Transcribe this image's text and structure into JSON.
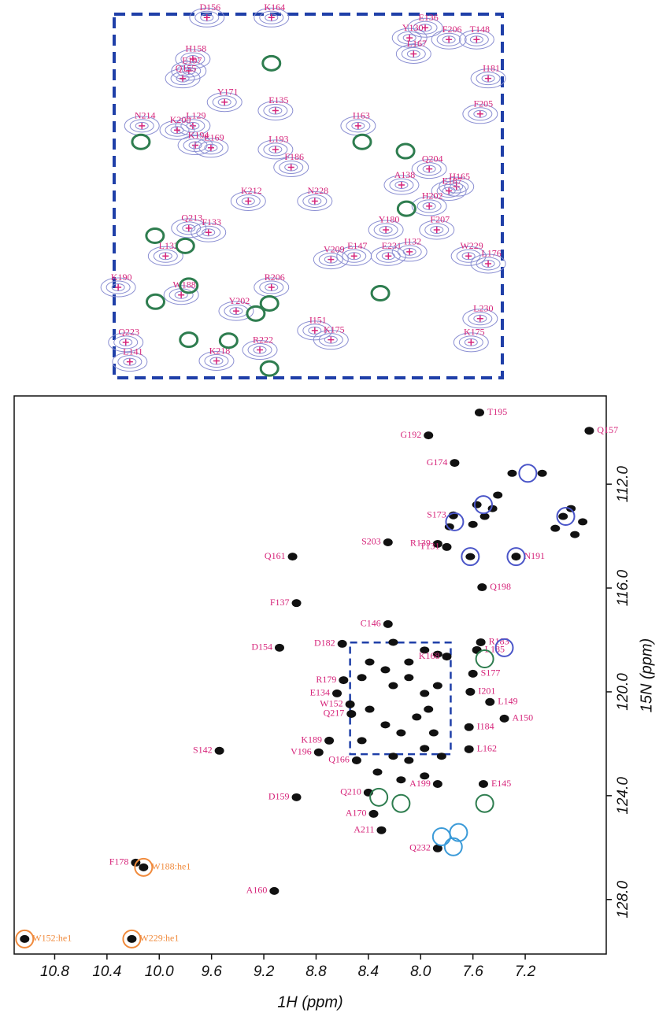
{
  "chart_data": [
    {
      "type": "scatter",
      "xlim": [
        8.54,
        7.77
      ],
      "ylim": [
        118.1,
        122.4
      ],
      "border_color": "#1f3fa8",
      "contour_color": "#8a8ed2",
      "label_color": "#d6247a",
      "point_color": "#d6247a",
      "points": [
        {
          "label": "D156",
          "x": 8.356,
          "y": 118.14
        },
        {
          "label": "K164",
          "x": 8.228,
          "y": 118.14
        },
        {
          "label": "E136",
          "x": 7.923,
          "y": 118.26
        },
        {
          "label": "Y130",
          "x": 7.954,
          "y": 118.38
        },
        {
          "label": "L167",
          "x": 7.946,
          "y": 118.57
        },
        {
          "label": "F206",
          "x": 7.876,
          "y": 118.4
        },
        {
          "label": "T148",
          "x": 7.821,
          "y": 118.4
        },
        {
          "label": "H158",
          "x": 8.384,
          "y": 118.63
        },
        {
          "label": "E197",
          "x": 8.392,
          "y": 118.77
        },
        {
          "label": "Q155",
          "x": 8.404,
          "y": 118.86
        },
        {
          "label": "I181",
          "x": 7.798,
          "y": 118.86
        },
        {
          "label": "Y171",
          "x": 8.321,
          "y": 119.14
        },
        {
          "label": "E135",
          "x": 8.22,
          "y": 119.24
        },
        {
          "label": "F205",
          "x": 7.814,
          "y": 119.28
        },
        {
          "label": "N214",
          "x": 8.485,
          "y": 119.42
        },
        {
          "label": "I163",
          "x": 8.056,
          "y": 119.42
        },
        {
          "label": "L129",
          "x": 8.384,
          "y": 119.42
        },
        {
          "label": "K200",
          "x": 8.415,
          "y": 119.47
        },
        {
          "label": "K194",
          "x": 8.379,
          "y": 119.65
        },
        {
          "label": "E169",
          "x": 8.348,
          "y": 119.68
        },
        {
          "label": "L193",
          "x": 8.22,
          "y": 119.7
        },
        {
          "label": "F186",
          "x": 8.189,
          "y": 119.91
        },
        {
          "label": "Q204",
          "x": 7.915,
          "y": 119.93
        },
        {
          "label": "A138",
          "x": 7.97,
          "y": 120.12
        },
        {
          "label": "H165",
          "x": 7.861,
          "y": 120.14
        },
        {
          "label": "E187",
          "x": 7.876,
          "y": 120.19
        },
        {
          "label": "K212",
          "x": 8.274,
          "y": 120.31
        },
        {
          "label": "H202",
          "x": 7.915,
          "y": 120.37
        },
        {
          "label": "N228",
          "x": 8.142,
          "y": 120.31
        },
        {
          "label": "Q213",
          "x": 8.392,
          "y": 120.63
        },
        {
          "label": "F133",
          "x": 8.353,
          "y": 120.68
        },
        {
          "label": "Y180",
          "x": 8.001,
          "y": 120.65
        },
        {
          "label": "F207",
          "x": 7.9,
          "y": 120.65
        },
        {
          "label": "L132",
          "x": 8.438,
          "y": 120.96
        },
        {
          "label": "E147",
          "x": 8.064,
          "y": 120.96
        },
        {
          "label": "V209",
          "x": 8.11,
          "y": 121.0
        },
        {
          "label": "E231",
          "x": 7.996,
          "y": 120.96
        },
        {
          "label": "I132",
          "x": 7.954,
          "y": 120.91
        },
        {
          "label": "W229",
          "x": 7.837,
          "y": 120.96
        },
        {
          "label": "L176",
          "x": 7.798,
          "y": 121.05
        },
        {
          "label": "K190",
          "x": 8.532,
          "y": 121.33
        },
        {
          "label": "R206",
          "x": 8.228,
          "y": 121.33
        },
        {
          "label": "Y202",
          "x": 8.298,
          "y": 121.61
        },
        {
          "label": "W188",
          "x": 8.407,
          "y": 121.42
        },
        {
          "label": "L230",
          "x": 7.814,
          "y": 121.7
        },
        {
          "label": "Q223",
          "x": 8.517,
          "y": 121.98
        },
        {
          "label": "K175",
          "x": 7.832,
          "y": 121.98
        },
        {
          "label": "I151",
          "x": 8.142,
          "y": 121.84
        },
        {
          "label": "K175",
          "x": 8.11,
          "y": 121.95
        },
        {
          "label": "R222",
          "x": 8.251,
          "y": 122.07
        },
        {
          "label": "L141",
          "x": 8.509,
          "y": 122.21
        },
        {
          "label": "K218",
          "x": 8.337,
          "y": 122.2
        }
      ],
      "highlights": [
        {
          "x": 8.228,
          "y": 118.68,
          "color": "#2e7d4f"
        },
        {
          "x": 8.487,
          "y": 119.61,
          "color": "#2e7d4f"
        },
        {
          "x": 8.048,
          "y": 119.61,
          "color": "#2e7d4f"
        },
        {
          "x": 7.962,
          "y": 119.72,
          "color": "#2e7d4f"
        },
        {
          "x": 7.96,
          "y": 120.4,
          "color": "#2e7d4f"
        },
        {
          "x": 8.399,
          "y": 120.84,
          "color": "#2e7d4f"
        },
        {
          "x": 8.459,
          "y": 120.72,
          "color": "#2e7d4f"
        },
        {
          "x": 8.392,
          "y": 121.31,
          "color": "#2e7d4f"
        },
        {
          "x": 8.458,
          "y": 121.5,
          "color": "#2e7d4f"
        },
        {
          "x": 8.232,
          "y": 121.52,
          "color": "#2e7d4f"
        },
        {
          "x": 8.259,
          "y": 121.64,
          "color": "#2e7d4f"
        },
        {
          "x": 8.392,
          "y": 121.95,
          "color": "#2e7d4f"
        },
        {
          "x": 8.313,
          "y": 121.96,
          "color": "#2e7d4f"
        },
        {
          "x": 8.012,
          "y": 121.4,
          "color": "#2e7d4f"
        },
        {
          "x": 8.232,
          "y": 122.29,
          "color": "#2e7d4f"
        }
      ]
    },
    {
      "type": "scatter",
      "x_label": "1H (ppm)",
      "y_label": "15N (ppm)",
      "xlim": [
        11.11,
        6.58
      ],
      "ylim": [
        108.6,
        130.1
      ],
      "xticks": [
        10.8,
        10.4,
        {
          "value": 10,
          "label": "10.0"
        },
        9.6,
        9.2,
        8.8,
        8.4,
        {
          "value": 8,
          "label": "8.0"
        },
        7.6,
        7.2
      ],
      "yticks": [
        {
          "value": 112,
          "label": "112.0"
        },
        {
          "value": 116,
          "label": "116.0"
        },
        {
          "value": 120,
          "label": "120.0"
        },
        {
          "value": 124,
          "label": "124.0"
        },
        {
          "value": 128,
          "label": "128.0"
        }
      ],
      "point_color": "#111111",
      "label_color": "#d6247a",
      "zoom_color": "#1f3fa8",
      "zoom_region": {
        "xlim": [
          8.54,
          7.77
        ],
        "ylim": [
          118.1,
          122.4
        ]
      },
      "points": [
        {
          "label": "T195",
          "x": 7.55,
          "y": 109.24
        },
        {
          "label": "Q157",
          "x": 6.71,
          "y": 109.94
        },
        {
          "label": "G192",
          "x": 7.94,
          "y": 110.12
        },
        {
          "label": "G174",
          "x": 7.74,
          "y": 111.18
        },
        {
          "label": "S173",
          "x": 7.75,
          "y": 113.2
        },
        {
          "label": "S203",
          "x": 8.25,
          "y": 114.24
        },
        {
          "label": "R139",
          "x": 7.87,
          "y": 114.3
        },
        {
          "label": "T131",
          "x": 7.8,
          "y": 114.42
        },
        {
          "label": "Q161",
          "x": 8.98,
          "y": 114.79
        },
        {
          "label": "N191",
          "x": 7.27,
          "y": 114.79
        },
        {
          "label": "Q198",
          "x": 7.53,
          "y": 115.97
        },
        {
          "label": "F137",
          "x": 8.95,
          "y": 116.58
        },
        {
          "label": "C146",
          "x": 8.25,
          "y": 117.39
        },
        {
          "label": "D182",
          "x": 8.6,
          "y": 118.15
        },
        {
          "label": "D154",
          "x": 9.08,
          "y": 118.3
        },
        {
          "label": "R183",
          "x": 7.54,
          "y": 118.09
        },
        {
          "label": "L185",
          "x": 7.57,
          "y": 118.39
        },
        {
          "label": "K168",
          "x": 7.8,
          "y": 118.64
        },
        {
          "label": "S177",
          "x": 7.6,
          "y": 119.3
        },
        {
          "label": "R179",
          "x": 8.59,
          "y": 119.55
        },
        {
          "label": "I201",
          "x": 7.62,
          "y": 120.0
        },
        {
          "label": "E134",
          "x": 8.64,
          "y": 120.06
        },
        {
          "label": "L149",
          "x": 7.47,
          "y": 120.39
        },
        {
          "label": "W152",
          "x": 8.54,
          "y": 120.48
        },
        {
          "label": "A150",
          "x": 7.36,
          "y": 121.03
        },
        {
          "label": "Q217",
          "x": 8.53,
          "y": 120.85
        },
        {
          "label": "I184",
          "x": 7.63,
          "y": 121.36
        },
        {
          "label": "K189",
          "x": 8.7,
          "y": 121.88
        },
        {
          "label": "S142",
          "x": 9.54,
          "y": 122.27
        },
        {
          "label": "V196",
          "x": 8.78,
          "y": 122.33
        },
        {
          "label": "L162",
          "x": 7.63,
          "y": 122.21
        },
        {
          "label": "Q166",
          "x": 8.49,
          "y": 122.64
        },
        {
          "label": "A199",
          "x": 7.87,
          "y": 123.55
        },
        {
          "label": "E145",
          "x": 7.52,
          "y": 123.55
        },
        {
          "label": "Q210",
          "x": 8.4,
          "y": 123.88
        },
        {
          "label": "D159",
          "x": 8.95,
          "y": 124.06
        },
        {
          "label": "A170",
          "x": 8.36,
          "y": 124.7
        },
        {
          "label": "A211",
          "x": 8.3,
          "y": 125.33
        },
        {
          "label": "Q232",
          "x": 7.87,
          "y": 126.03
        },
        {
          "label": "F178",
          "x": 10.18,
          "y": 126.58
        },
        {
          "label": "A160",
          "x": 9.12,
          "y": 127.67
        }
      ],
      "sidechain_points": [
        {
          "label": "W188:he1",
          "x": 10.12,
          "y": 126.76
        },
        {
          "label": "W152:he1",
          "x": 11.03,
          "y": 129.52
        },
        {
          "label": "W229:he1",
          "x": 10.21,
          "y": 129.52
        }
      ],
      "sidechain_color": "#f08a3c",
      "unassigned": {
        "x": [
          8.39,
          8.27,
          8.45,
          8.21,
          8.09,
          7.97,
          8.39,
          8.27,
          8.15,
          8.03,
          7.9,
          8.45,
          8.21,
          8.09,
          7.97,
          7.84,
          8.33,
          8.15,
          7.97,
          7.87,
          7.97,
          7.87,
          8.21,
          8.09,
          7.94,
          7.62,
          7.57,
          7.51,
          7.45,
          7.6,
          7.41,
          7.78,
          6.91,
          6.85,
          6.76,
          6.97,
          6.82,
          7.3,
          7.07
        ],
        "y": [
          118.85,
          119.15,
          119.45,
          119.76,
          119.45,
          120.06,
          120.67,
          121.27,
          121.58,
          120.97,
          121.58,
          121.88,
          122.48,
          122.64,
          122.18,
          122.48,
          123.09,
          123.39,
          123.24,
          119.76,
          118.39,
          118.55,
          118.09,
          118.85,
          120.67,
          114.79,
          112.79,
          113.24,
          112.94,
          113.55,
          112.42,
          113.64,
          113.24,
          112.94,
          113.45,
          113.7,
          113.94,
          111.58,
          111.58
        ]
      },
      "highlights": [
        {
          "x": 7.18,
          "y": 111.58,
          "color": "#4a55c8"
        },
        {
          "x": 7.52,
          "y": 112.79,
          "color": "#4a55c8"
        },
        {
          "x": 6.89,
          "y": 113.24,
          "color": "#4a55c8"
        },
        {
          "x": 7.74,
          "y": 113.45,
          "color": "#4a55c8"
        },
        {
          "x": 7.62,
          "y": 114.79,
          "color": "#4a55c8"
        },
        {
          "x": 7.27,
          "y": 114.79,
          "color": "#4a55c8"
        },
        {
          "x": 7.36,
          "y": 118.3,
          "color": "#4a55c8"
        },
        {
          "x": 7.84,
          "y": 125.58,
          "color": "#3a9ad8"
        },
        {
          "x": 7.71,
          "y": 125.42,
          "color": "#3a9ad8"
        },
        {
          "x": 7.75,
          "y": 125.97,
          "color": "#3a9ad8"
        },
        {
          "x": 7.51,
          "y": 124.3,
          "color": "#2e7d4f"
        },
        {
          "x": 8.32,
          "y": 124.06,
          "color": "#2e7d4f"
        },
        {
          "x": 8.15,
          "y": 124.3,
          "color": "#2e7d4f"
        },
        {
          "x": 7.51,
          "y": 118.73,
          "color": "#2e7d4f"
        },
        {
          "x": 11.03,
          "y": 129.52,
          "color": "#f08a3c"
        },
        {
          "x": 10.21,
          "y": 129.52,
          "color": "#f08a3c"
        },
        {
          "x": 10.12,
          "y": 126.76,
          "color": "#f08a3c"
        }
      ]
    }
  ]
}
